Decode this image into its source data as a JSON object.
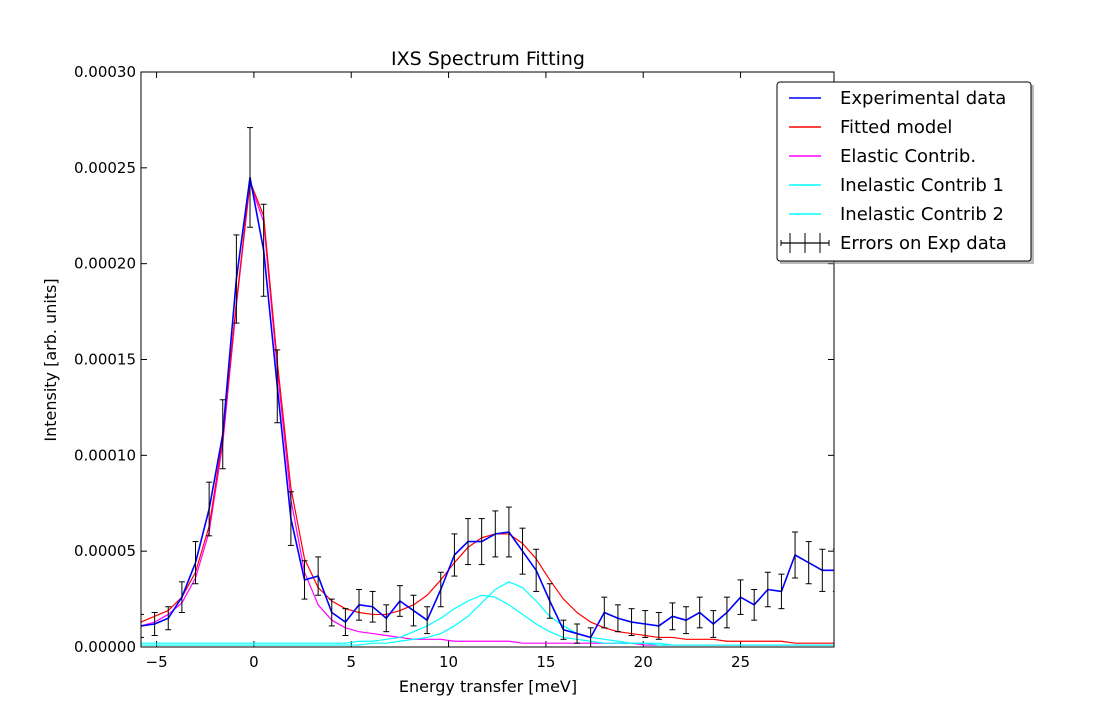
{
  "chart_data": {
    "type": "line",
    "title": "IXS Spectrum Fitting",
    "xlabel": "Energy transfer [meV]",
    "ylabel": "Intensity [arb. units]",
    "xlim": [
      -5.8,
      29.8
    ],
    "ylim": [
      0,
      0.0003
    ],
    "x_ticks": [
      -5,
      0,
      5,
      10,
      15,
      20,
      25
    ],
    "x_tick_labels": [
      "−5",
      "0",
      "5",
      "10",
      "15",
      "20",
      "25"
    ],
    "y_ticks": [
      0,
      5e-05,
      0.0001,
      0.00015,
      0.0002,
      0.00025,
      0.0003
    ],
    "y_tick_labels": [
      "0.00000",
      "0.00005",
      "0.00010",
      "0.00015",
      "0.00020",
      "0.00025",
      "0.00030"
    ],
    "grid": false,
    "legend_position": "top-right",
    "x": [
      -5.8,
      -5.1,
      -4.4,
      -3.7,
      -3.0,
      -2.3,
      -1.6,
      -0.9,
      -0.2,
      0.5,
      1.2,
      1.9,
      2.6,
      3.3,
      4.0,
      4.7,
      5.4,
      6.1,
      6.8,
      7.5,
      8.2,
      8.9,
      9.6,
      10.3,
      11.0,
      11.7,
      12.4,
      13.1,
      13.8,
      14.5,
      15.2,
      15.9,
      16.6,
      17.3,
      18.0,
      18.7,
      19.4,
      20.1,
      20.8,
      21.5,
      22.2,
      22.9,
      23.6,
      24.3,
      25.0,
      25.7,
      26.4,
      27.1,
      27.8,
      28.5,
      29.2,
      29.9
    ],
    "series": [
      {
        "name": "Experimental data",
        "color": "#0000ff",
        "values": [
          1.1e-05,
          1.2e-05,
          1.5e-05,
          2.6e-05,
          4.4e-05,
          7.2e-05,
          0.000111,
          0.000192,
          0.000245,
          0.000207,
          0.000136,
          6.7e-05,
          3.5e-05,
          3.7e-05,
          1.8e-05,
          1.3e-05,
          2.2e-05,
          2.1e-05,
          1.5e-05,
          2.4e-05,
          1.9e-05,
          1.4e-05,
          3e-05,
          4.8e-05,
          5.5e-05,
          5.5e-05,
          5.9e-05,
          6e-05,
          5e-05,
          4e-05,
          2.4e-05,
          9e-06,
          7e-06,
          5e-06,
          1.8e-05,
          1.5e-05,
          1.3e-05,
          1.2e-05,
          1.1e-05,
          1.6e-05,
          1.4e-05,
          1.8e-05,
          1.2e-05,
          1.8e-05,
          2.6e-05,
          2.2e-05,
          3e-05,
          2.9e-05,
          4.8e-05,
          4.4e-05,
          4e-05,
          4e-05
        ],
        "errors": [
          6e-06,
          6e-06,
          6e-06,
          8e-06,
          1.1e-05,
          1.4e-05,
          1.8e-05,
          2.3e-05,
          2.6e-05,
          2.4e-05,
          1.9e-05,
          1.4e-05,
          1e-05,
          1e-05,
          7e-06,
          7e-06,
          8e-06,
          8e-06,
          7e-06,
          8e-06,
          8e-06,
          7e-06,
          9e-06,
          1.1e-05,
          1.2e-05,
          1.2e-05,
          1.2e-05,
          1.3e-05,
          1.2e-05,
          1.1e-05,
          9e-06,
          5e-06,
          5e-06,
          5e-06,
          8e-06,
          7e-06,
          7e-06,
          7e-06,
          7e-06,
          7e-06,
          7e-06,
          8e-06,
          7e-06,
          8e-06,
          9e-06,
          8e-06,
          9e-06,
          9e-06,
          1.2e-05,
          1.1e-05,
          1.1e-05,
          1.1e-05
        ]
      },
      {
        "name": "Fitted model",
        "color": "#ff0000",
        "values": [
          1.3e-05,
          1.6e-05,
          1.9e-05,
          2.6e-05,
          3.9e-05,
          6.3e-05,
          0.000109,
          0.00018,
          0.000243,
          0.000225,
          0.000149,
          8.3e-05,
          4.6e-05,
          3.1e-05,
          2.4e-05,
          2e-05,
          1.8e-05,
          1.7e-05,
          1.7e-05,
          1.9e-05,
          2.2e-05,
          2.7e-05,
          3.5e-05,
          4.4e-05,
          5.2e-05,
          5.7e-05,
          5.9e-05,
          5.9e-05,
          5.4e-05,
          4.6e-05,
          3.5e-05,
          2.5e-05,
          1.8e-05,
          1.3e-05,
          1e-05,
          8e-06,
          7e-06,
          6e-06,
          5e-06,
          5e-06,
          4e-06,
          4e-06,
          4e-06,
          3e-06,
          3e-06,
          3e-06,
          3e-06,
          3e-06,
          2e-06,
          2e-06,
          2e-06,
          2e-06
        ]
      },
      {
        "name": "Elastic Contrib.",
        "color": "#ff00ff",
        "values": [
          1.1e-05,
          1.3e-05,
          1.7e-05,
          2.3e-05,
          3.6e-05,
          6e-05,
          0.000106,
          0.000178,
          0.000242,
          0.000222,
          0.000145,
          7.7e-05,
          3.9e-05,
          2.2e-05,
          1.4e-05,
          1e-05,
          8e-06,
          7e-06,
          6e-06,
          5e-06,
          4e-06,
          4e-06,
          4e-06,
          3e-06,
          3e-06,
          3e-06,
          3e-06,
          3e-06,
          2e-06,
          2e-06,
          2e-06,
          2e-06,
          2e-06,
          2e-06,
          2e-06,
          2e-06,
          2e-06,
          1e-06,
          1e-06,
          1e-06,
          1e-06,
          1e-06,
          1e-06,
          1e-06,
          1e-06,
          1e-06,
          1e-06,
          1e-06,
          1e-06,
          1e-06,
          1e-06,
          1e-06
        ]
      },
      {
        "name": "Inelastic Contrib 1",
        "color": "#00ffff",
        "values": [
          2e-06,
          2e-06,
          2e-06,
          2e-06,
          2e-06,
          2e-06,
          2e-06,
          2e-06,
          2e-06,
          2e-06,
          2e-06,
          2e-06,
          2e-06,
          2e-06,
          2e-06,
          2e-06,
          3e-06,
          3e-06,
          4e-06,
          5e-06,
          8e-06,
          1.1e-05,
          1.5e-05,
          2e-05,
          2.4e-05,
          2.7e-05,
          2.6e-05,
          2.2e-05,
          1.7e-05,
          1.2e-05,
          8e-06,
          5e-06,
          4e-06,
          3e-06,
          2e-06,
          2e-06,
          2e-06,
          2e-06,
          1e-06,
          1e-06,
          1e-06,
          1e-06,
          1e-06,
          1e-06,
          1e-06,
          1e-06,
          1e-06,
          1e-06,
          1e-06,
          1e-06,
          1e-06,
          1e-06
        ]
      },
      {
        "name": "Inelastic Contrib 2",
        "color": "#00ffff",
        "values": [
          1e-06,
          1e-06,
          1e-06,
          1e-06,
          1e-06,
          1e-06,
          1e-06,
          1e-06,
          1e-06,
          1e-06,
          1e-06,
          1e-06,
          1e-06,
          1e-06,
          1e-06,
          1e-06,
          1e-06,
          2e-06,
          2e-06,
          3e-06,
          4e-06,
          5e-06,
          7e-06,
          1.1e-05,
          1.6e-05,
          2.3e-05,
          3e-05,
          3.4e-05,
          3.1e-05,
          2.4e-05,
          1.6e-05,
          1.1e-05,
          7e-06,
          5e-06,
          4e-06,
          3e-06,
          2e-06,
          2e-06,
          2e-06,
          1e-06,
          1e-06,
          1e-06,
          1e-06,
          1e-06,
          1e-06,
          1e-06,
          1e-06,
          1e-06,
          1e-06,
          1e-06,
          1e-06,
          1e-06
        ]
      }
    ],
    "legend": [
      {
        "label": "Experimental data",
        "color": "#0000ff",
        "kind": "line"
      },
      {
        "label": "Fitted model",
        "color": "#ff0000",
        "kind": "line"
      },
      {
        "label": "Elastic Contrib.",
        "color": "#ff00ff",
        "kind": "line"
      },
      {
        "label": "Inelastic Contrib 1",
        "color": "#00ffff",
        "kind": "line"
      },
      {
        "label": "Inelastic Contrib 2",
        "color": "#00ffff",
        "kind": "line"
      },
      {
        "label": "Errors on Exp data",
        "color": "#000000",
        "kind": "errorbar"
      }
    ]
  }
}
